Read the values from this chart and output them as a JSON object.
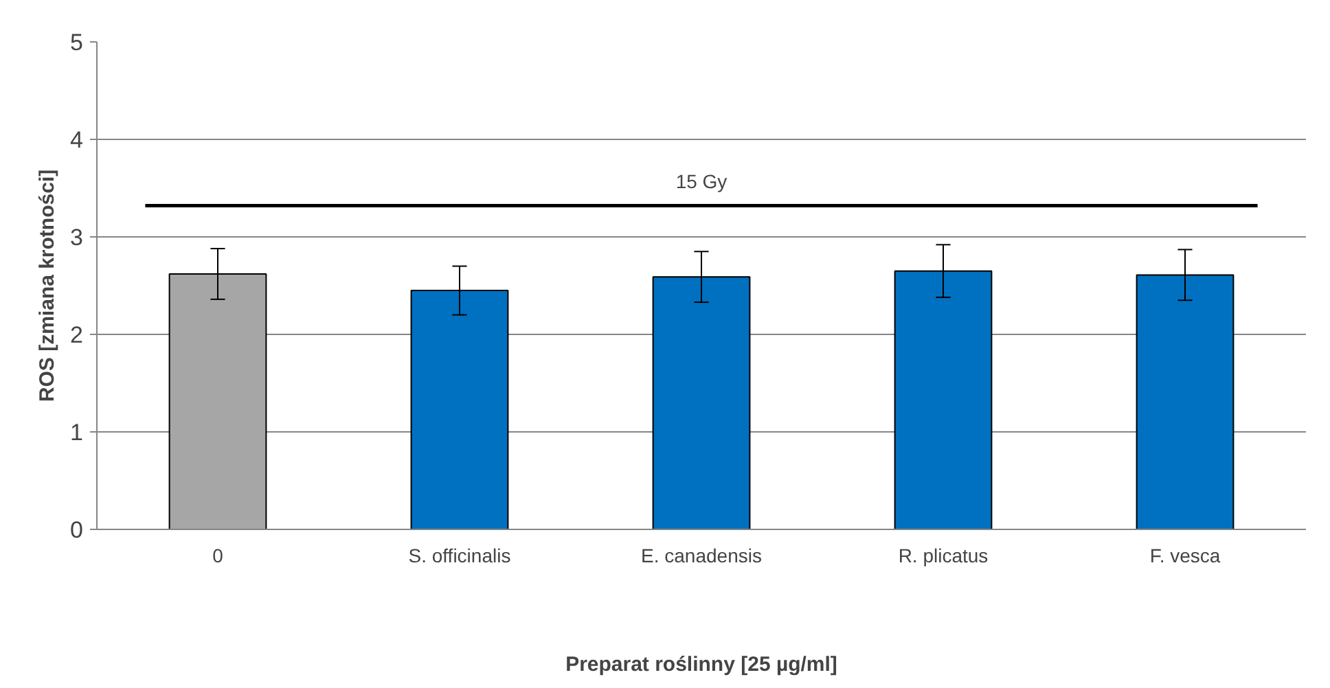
{
  "chart_data": {
    "type": "bar",
    "ylabel": "ROS [zmiana krotności]",
    "xlabel": "Preparat roślinny [25 µg/ml]",
    "categories": [
      "0",
      "S. officinalis",
      "E. canadensis",
      "R. plicatus",
      "F. vesca"
    ],
    "values": [
      2.62,
      2.45,
      2.59,
      2.65,
      2.61
    ],
    "colors": [
      "#a6a6a6",
      "#0070c0",
      "#0070c0",
      "#0070c0",
      "#0070c0"
    ],
    "errors": [
      0.26,
      0.25,
      0.26,
      0.27,
      0.26
    ],
    "ylim": [
      0,
      5
    ],
    "yticks": [
      0,
      1,
      2,
      3,
      4,
      5
    ],
    "grid": "y",
    "ref_lines": [
      {
        "axis": "y",
        "value": 3.32,
        "label": "15 Gy",
        "color": "#000000"
      }
    ]
  }
}
